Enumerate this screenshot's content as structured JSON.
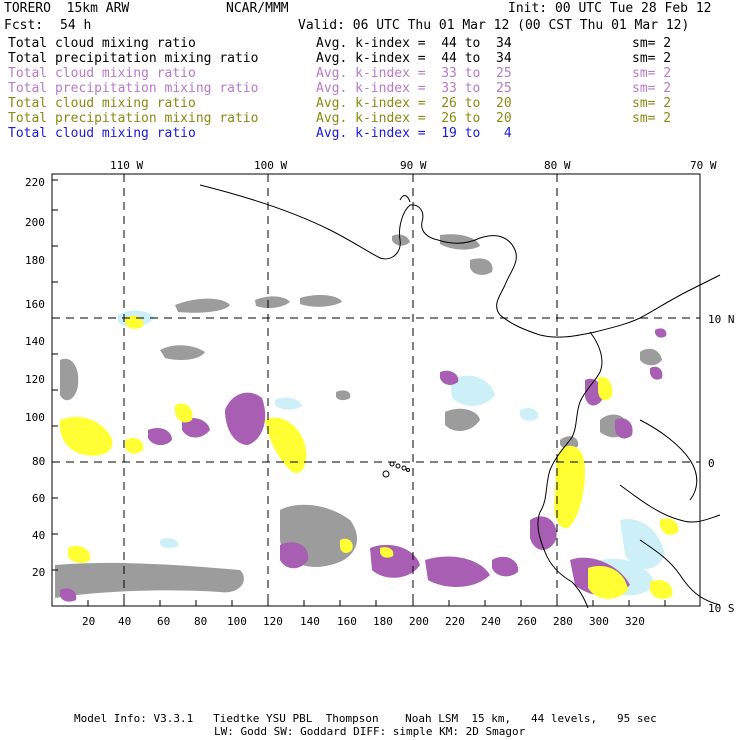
{
  "header": {
    "model": "TORERO  15km ARW",
    "org": "NCAR/MMM",
    "init": "Init: 00 UTC Tue 28 Feb 12",
    "fcst_label": "Fcst:",
    "fcst_hours": "54 h",
    "valid": "Valid: 06 UTC Thu 01 Mar 12 (00 CST Thu 01 Mar 12)"
  },
  "legend": [
    {
      "field": "Total cloud mixing ratio",
      "kindex": "Avg. k-index =  44 to  34",
      "sm": "sm= 2",
      "color": "#000000"
    },
    {
      "field": "Total precipitation mixing ratio",
      "kindex": "Avg. k-index =  44 to  34",
      "sm": "sm= 2",
      "color": "#000000"
    },
    {
      "field": "Total cloud mixing ratio",
      "kindex": "Avg. k-index =  33 to  25",
      "sm": "sm= 2",
      "color": "#b77bc8"
    },
    {
      "field": "Total precipitation mixing ratio",
      "kindex": "Avg. k-index =  33 to  25",
      "sm": "sm= 2",
      "color": "#b77bc8"
    },
    {
      "field": "Total cloud mixing ratio",
      "kindex": "Avg. k-index =  26 to  20",
      "sm": "sm= 2",
      "color": "#8a8a14"
    },
    {
      "field": "Total precipitation mixing ratio",
      "kindex": "Avg. k-index =  26 to  20",
      "sm": "sm= 2",
      "color": "#8a8a14"
    },
    {
      "field": "Total cloud mixing ratio",
      "kindex": "Avg. k-index =  19 to   4",
      "sm": "",
      "color": "#1a1adb"
    }
  ],
  "map": {
    "lon_labels": [
      "110 W",
      "100 W",
      "90 W",
      "80 W",
      "70 W"
    ],
    "lat_labels": [
      "10 N",
      "0",
      "10 S"
    ],
    "x_ticks": [
      "20",
      "40",
      "60",
      "80",
      "100",
      "120",
      "140",
      "160",
      "180",
      "200",
      "220",
      "240",
      "260",
      "280",
      "300",
      "320"
    ],
    "y_ticks": [
      "20",
      "40",
      "60",
      "80",
      "100",
      "120",
      "140",
      "160",
      "180",
      "200",
      "220"
    ],
    "colors": {
      "gray": "#9c9c9c",
      "purple": "#a85fb3",
      "yellow": "#ffff33",
      "cyan": "#cdeff8",
      "grid": "#000000"
    }
  },
  "footer": {
    "line1": "Model Info: V3.3.1   Tiedtke YSU PBL  Thompson    Noah LSM  15 km,   44 levels,   95 sec",
    "line2": "LW: Godd SW: Goddard DIFF: simple KM: 2D Smagor"
  }
}
